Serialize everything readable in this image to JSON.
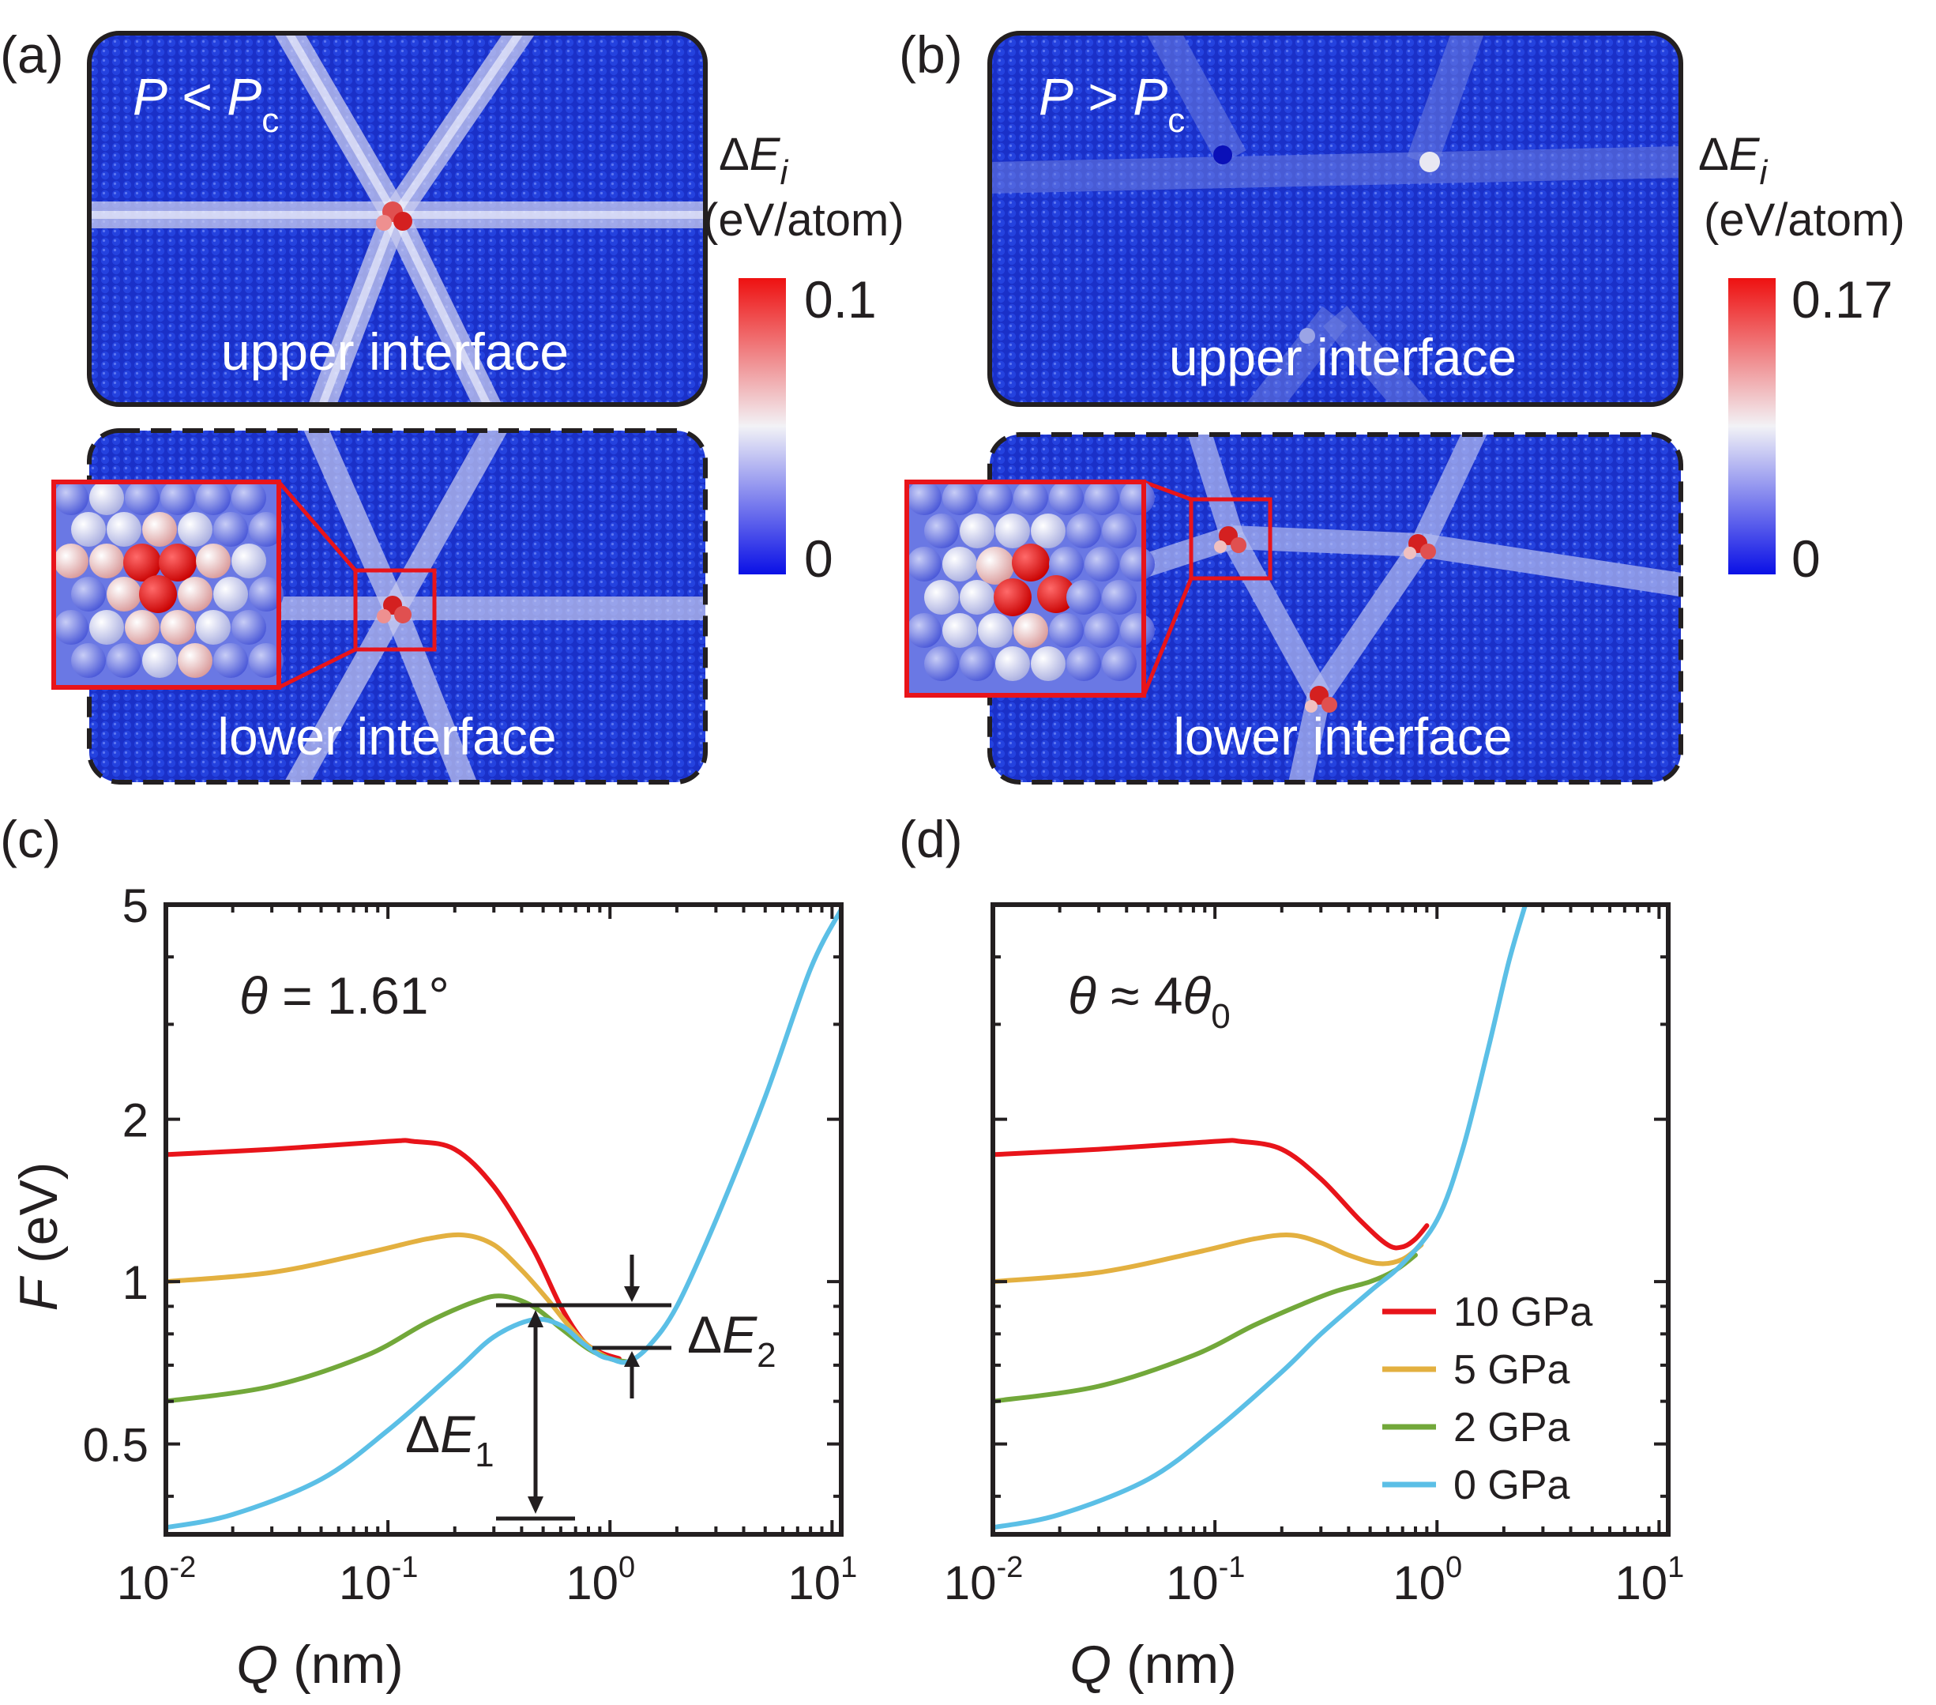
{
  "panels": {
    "a": {
      "label": "(a)",
      "condition": {
        "symbol": "P",
        "relation": "<",
        "crit_symbol": "P",
        "crit_sub": "c"
      },
      "upper_label": "upper interface",
      "lower_label": "lower interface",
      "colorbar": {
        "title_delta": "Δ",
        "title_symbol": "E",
        "title_sub": "i",
        "units": "(eV/atom)",
        "max": "0.1",
        "min": "0"
      }
    },
    "b": {
      "label": "(b)",
      "condition": {
        "symbol": "P",
        "relation": ">",
        "crit_symbol": "P",
        "crit_sub": "c"
      },
      "upper_label": "upper interface",
      "lower_label": "lower interface",
      "colorbar": {
        "title_delta": "Δ",
        "title_symbol": "E",
        "title_sub": "i",
        "units": "(eV/atom)",
        "max": "0.17",
        "min": "0"
      }
    },
    "c": {
      "label": "(c)",
      "annotation": {
        "symbol": "θ",
        "text": " = 1.61°"
      },
      "delta_e1": {
        "delta": "Δ",
        "symbol": "E",
        "sub": "1"
      },
      "delta_e2": {
        "delta": "Δ",
        "symbol": "E",
        "sub": "2"
      }
    },
    "d": {
      "label": "(d)",
      "annotation": {
        "symbol": "θ",
        "mid": " ≈ 4",
        "symbol2": "θ",
        "sub": "0"
      }
    }
  },
  "axes": {
    "xlabel_symbol": "Q",
    "xlabel_units": " (nm)",
    "ylabel_symbol": "F",
    "ylabel_units": " (eV)",
    "x_tick_base": "10",
    "x_tick_exponents": [
      "-2",
      "-1",
      "0",
      "1"
    ],
    "y_tick_labels": [
      "0.5",
      "1",
      "2",
      "5"
    ]
  },
  "legend": [
    {
      "label": "10 GPa",
      "color": "#e8141a"
    },
    {
      "label": "5 GPa",
      "color": "#e3b040"
    },
    {
      "label": "2 GPa",
      "color": "#72a83a"
    },
    {
      "label": "0 GPa",
      "color": "#5bbfe6"
    }
  ],
  "chart_data": [
    {
      "panel": "c",
      "type": "line",
      "title": "θ = 1.61°",
      "xlabel": "Q (nm)",
      "ylabel": "F (eV)",
      "xscale": "log",
      "yscale": "log",
      "xlim": [
        0.01,
        11
      ],
      "ylim": [
        0.34,
        5
      ],
      "grid": false,
      "series": [
        {
          "name": "10 GPa",
          "color": "#e8141a",
          "x": [
            0.01,
            0.03,
            0.1,
            0.13,
            0.2,
            0.3,
            0.45,
            0.6,
            0.75,
            0.9,
            1.1
          ],
          "y": [
            1.72,
            1.76,
            1.82,
            1.82,
            1.76,
            1.5,
            1.15,
            0.9,
            0.78,
            0.74,
            0.72
          ]
        },
        {
          "name": "5 GPa",
          "color": "#e3b040",
          "x": [
            0.01,
            0.03,
            0.08,
            0.15,
            0.22,
            0.3,
            0.4,
            0.52,
            0.65,
            0.8,
            1.0,
            1.2
          ],
          "y": [
            1.0,
            1.04,
            1.13,
            1.2,
            1.22,
            1.17,
            1.05,
            0.93,
            0.83,
            0.76,
            0.72,
            0.71
          ]
        },
        {
          "name": "2 GPa",
          "color": "#72a83a",
          "x": [
            0.01,
            0.03,
            0.08,
            0.15,
            0.25,
            0.33,
            0.45,
            0.6,
            0.8,
            1.0,
            1.2
          ],
          "y": [
            0.6,
            0.64,
            0.73,
            0.84,
            0.92,
            0.94,
            0.9,
            0.82,
            0.75,
            0.72,
            0.71
          ]
        },
        {
          "name": "0 GPa",
          "color": "#5bbfe6",
          "x": [
            0.01,
            0.02,
            0.05,
            0.1,
            0.2,
            0.3,
            0.45,
            0.6,
            0.75,
            0.9,
            1.0,
            1.2,
            1.5,
            2.0,
            3.0,
            5.0,
            8.0,
            11.0
          ],
          "y": [
            0.35,
            0.37,
            0.43,
            0.53,
            0.68,
            0.79,
            0.85,
            0.83,
            0.77,
            0.73,
            0.72,
            0.71,
            0.76,
            0.9,
            1.3,
            2.2,
            3.8,
            4.9
          ]
        }
      ],
      "annotations": [
        {
          "text": "ΔE1",
          "from_y": 0.35,
          "to_y": 0.85,
          "x": 0.35
        },
        {
          "text": "ΔE2",
          "from_y": 0.72,
          "to_y": 0.85,
          "x": 1.2
        }
      ]
    },
    {
      "panel": "d",
      "type": "line",
      "title": "θ ≈ 4θ0",
      "xlabel": "Q (nm)",
      "ylabel": "F (eV)",
      "xscale": "log",
      "yscale": "log",
      "xlim": [
        0.01,
        11
      ],
      "ylim": [
        0.34,
        5
      ],
      "grid": false,
      "legend_position": "lower-right",
      "series": [
        {
          "name": "10 GPa",
          "color": "#e8141a",
          "x": [
            0.01,
            0.03,
            0.1,
            0.13,
            0.2,
            0.3,
            0.45,
            0.6,
            0.7,
            0.8,
            0.9
          ],
          "y": [
            1.72,
            1.76,
            1.82,
            1.82,
            1.76,
            1.55,
            1.3,
            1.17,
            1.16,
            1.2,
            1.27
          ]
        },
        {
          "name": "5 GPa",
          "color": "#e3b040",
          "x": [
            0.01,
            0.03,
            0.08,
            0.15,
            0.22,
            0.3,
            0.4,
            0.55,
            0.7,
            0.85
          ],
          "y": [
            1.0,
            1.04,
            1.13,
            1.2,
            1.22,
            1.18,
            1.12,
            1.08,
            1.1,
            1.17
          ]
        },
        {
          "name": "2 GPa",
          "color": "#72a83a",
          "x": [
            0.01,
            0.03,
            0.08,
            0.15,
            0.25,
            0.35,
            0.5,
            0.65,
            0.8
          ],
          "y": [
            0.6,
            0.64,
            0.73,
            0.83,
            0.91,
            0.96,
            1.0,
            1.05,
            1.12
          ]
        },
        {
          "name": "0 GPa",
          "color": "#5bbfe6",
          "x": [
            0.01,
            0.02,
            0.05,
            0.1,
            0.2,
            0.3,
            0.5,
            0.7,
            1.0,
            1.3,
            1.7,
            2.1,
            2.5
          ],
          "y": [
            0.35,
            0.37,
            0.43,
            0.53,
            0.68,
            0.8,
            0.96,
            1.08,
            1.3,
            1.75,
            2.7,
            3.9,
            5.0
          ]
        }
      ]
    }
  ]
}
